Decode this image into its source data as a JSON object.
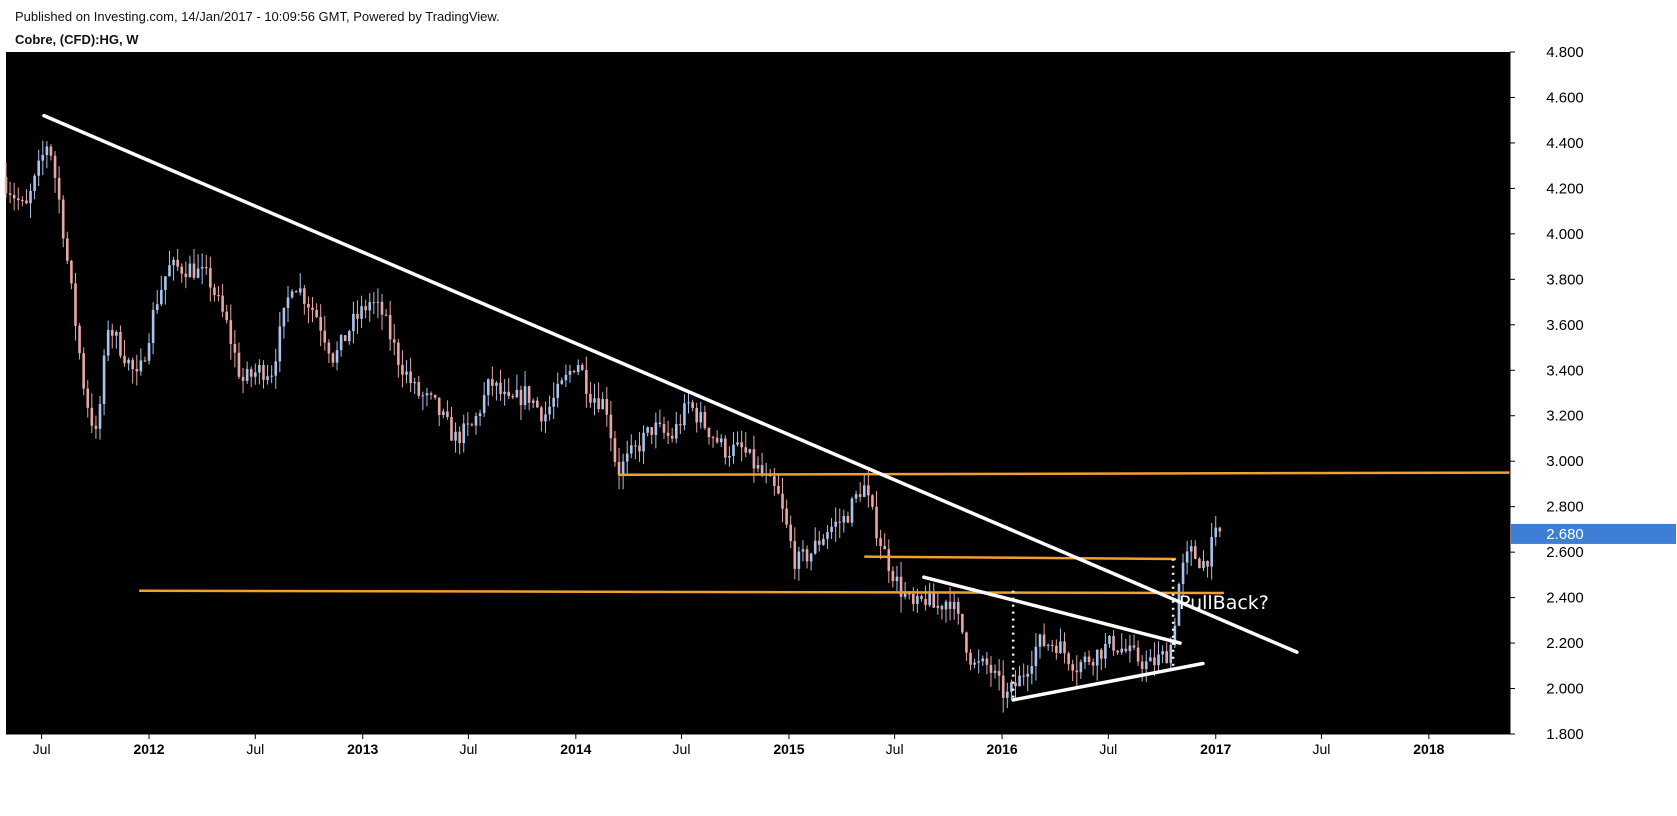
{
  "header": {
    "published": "Published on Investing.com, 14/Jan/2017 - 10:09:56 GMT, Powered by TradingView.",
    "symbol": "Cobre, (CFD):HG, W"
  },
  "chart_data": {
    "type": "candlestick",
    "title": "Cobre, (CFD):HG, W",
    "x_range": [
      "2011-05-01",
      "2018-05-20"
    ],
    "y_range": [
      1.8,
      4.8
    ],
    "y_ticks": [
      "4.800",
      "4.600",
      "4.400",
      "4.200",
      "4.000",
      "3.800",
      "3.600",
      "3.400",
      "3.200",
      "3.000",
      "2.800",
      "2.600",
      "2.400",
      "2.200",
      "2.000",
      "1.800"
    ],
    "x_ticks": [
      {
        "label": "Jul",
        "date": "2011-07-01",
        "bold": false
      },
      {
        "label": "2012",
        "date": "2012-01-01",
        "bold": true
      },
      {
        "label": "Jul",
        "date": "2012-07-01",
        "bold": false
      },
      {
        "label": "2013",
        "date": "2013-01-01",
        "bold": true
      },
      {
        "label": "Jul",
        "date": "2013-07-01",
        "bold": false
      },
      {
        "label": "2014",
        "date": "2014-01-01",
        "bold": true
      },
      {
        "label": "Jul",
        "date": "2014-07-01",
        "bold": false
      },
      {
        "label": "2015",
        "date": "2015-01-01",
        "bold": true
      },
      {
        "label": "Jul",
        "date": "2015-07-01",
        "bold": false
      },
      {
        "label": "2016",
        "date": "2016-01-01",
        "bold": true
      },
      {
        "label": "Jul",
        "date": "2016-07-01",
        "bold": false
      },
      {
        "label": "2017",
        "date": "2017-01-01",
        "bold": true
      },
      {
        "label": "Jul",
        "date": "2017-07-01",
        "bold": false
      },
      {
        "label": "2018",
        "date": "2018-01-01",
        "bold": true
      }
    ],
    "last_price": "2.680",
    "colors": {
      "background": "#000000",
      "up": "#a9c4ec",
      "down": "#e8a6a6",
      "trend": "#ffffff",
      "level": "#f0a030",
      "badge": "#3d7fd6"
    },
    "price_path": [
      [
        "2011-05-01",
        4.25
      ],
      [
        "2011-06-10",
        4.1
      ],
      [
        "2011-07-20",
        4.42
      ],
      [
        "2011-08-10",
        4.1
      ],
      [
        "2011-08-20",
        3.9
      ],
      [
        "2011-09-20",
        3.3
      ],
      [
        "2011-10-10",
        3.1
      ],
      [
        "2011-10-30",
        3.6
      ],
      [
        "2011-12-01",
        3.45
      ],
      [
        "2011-12-20",
        3.35
      ],
      [
        "2012-01-20",
        3.7
      ],
      [
        "2012-02-10",
        3.85
      ],
      [
        "2012-03-20",
        3.85
      ],
      [
        "2012-04-20",
        3.8
      ],
      [
        "2012-05-20",
        3.6
      ],
      [
        "2012-06-15",
        3.35
      ],
      [
        "2012-07-15",
        3.4
      ],
      [
        "2012-08-05",
        3.4
      ],
      [
        "2012-09-10",
        3.8
      ],
      [
        "2012-10-20",
        3.65
      ],
      [
        "2012-11-20",
        3.45
      ],
      [
        "2012-12-20",
        3.6
      ],
      [
        "2013-01-20",
        3.7
      ],
      [
        "2013-02-10",
        3.65
      ],
      [
        "2013-03-10",
        3.45
      ],
      [
        "2013-04-10",
        3.3
      ],
      [
        "2013-05-10",
        3.25
      ],
      [
        "2013-06-15",
        3.1
      ],
      [
        "2013-07-15",
        3.15
      ],
      [
        "2013-08-15",
        3.35
      ],
      [
        "2013-09-15",
        3.25
      ],
      [
        "2013-10-15",
        3.3
      ],
      [
        "2013-11-15",
        3.2
      ],
      [
        "2013-12-20",
        3.35
      ],
      [
        "2014-01-10",
        3.45
      ],
      [
        "2014-02-01",
        3.3
      ],
      [
        "2014-03-01",
        3.25
      ],
      [
        "2014-03-20",
        2.95
      ],
      [
        "2014-04-20",
        3.05
      ],
      [
        "2014-05-20",
        3.15
      ],
      [
        "2014-06-20",
        3.1
      ],
      [
        "2014-07-20",
        3.25
      ],
      [
        "2014-08-20",
        3.15
      ],
      [
        "2014-09-20",
        3.05
      ],
      [
        "2014-10-20",
        3.05
      ],
      [
        "2014-11-20",
        2.95
      ],
      [
        "2014-12-20",
        2.85
      ],
      [
        "2015-01-20",
        2.55
      ],
      [
        "2015-02-15",
        2.6
      ],
      [
        "2015-03-15",
        2.7
      ],
      [
        "2015-04-15",
        2.75
      ],
      [
        "2015-05-15",
        2.9
      ],
      [
        "2015-06-01",
        2.75
      ],
      [
        "2015-06-20",
        2.6
      ],
      [
        "2015-07-15",
        2.45
      ],
      [
        "2015-08-10",
        2.35
      ],
      [
        "2015-09-01",
        2.4
      ],
      [
        "2015-09-15",
        2.35
      ],
      [
        "2015-10-10",
        2.4
      ],
      [
        "2015-11-01",
        2.25
      ],
      [
        "2015-11-20",
        2.1
      ],
      [
        "2015-12-15",
        2.1
      ],
      [
        "2016-01-15",
        1.96
      ],
      [
        "2016-02-10",
        2.05
      ],
      [
        "2016-03-10",
        2.2
      ],
      [
        "2016-04-10",
        2.2
      ],
      [
        "2016-05-15",
        2.1
      ],
      [
        "2016-06-15",
        2.15
      ],
      [
        "2016-07-15",
        2.2
      ],
      [
        "2016-08-15",
        2.15
      ],
      [
        "2016-09-15",
        2.1
      ],
      [
        "2016-10-15",
        2.15
      ],
      [
        "2016-10-25",
        2.2
      ],
      [
        "2016-11-08",
        2.5
      ],
      [
        "2016-11-25",
        2.6
      ],
      [
        "2016-12-20",
        2.55
      ],
      [
        "2017-01-10",
        2.68
      ]
    ],
    "trendlines": [
      {
        "from": [
          "2011-07-05",
          4.52
        ],
        "to": [
          "2017-05-20",
          2.16
        ],
        "color": "trend"
      },
      {
        "from": [
          "2016-01-20",
          1.95
        ],
        "to": [
          "2016-12-10",
          2.11
        ],
        "color": "trend"
      },
      {
        "from": [
          "2015-08-20",
          2.49
        ],
        "to": [
          "2016-11-01",
          2.2
        ],
        "color": "trend"
      }
    ],
    "levels": [
      {
        "from": [
          "2014-03-15",
          2.94
        ],
        "to": [
          "2018-05-20",
          2.95
        ],
        "color": "level"
      },
      {
        "from": [
          "2011-12-15",
          2.43
        ],
        "to": [
          "2017-01-15",
          2.42
        ],
        "color": "level"
      },
      {
        "from": [
          "2015-05-10",
          2.58
        ],
        "to": [
          "2016-10-25",
          2.57
        ],
        "color": "level"
      }
    ],
    "dotted_lines": [
      {
        "date": "2016-01-20",
        "from": 1.96,
        "to": 2.43
      },
      {
        "date": "2016-10-20",
        "from": 2.1,
        "to": 2.57
      }
    ],
    "annotations": [
      {
        "text": "PullBack?",
        "date": "2016-10-30",
        "value": 2.35
      }
    ]
  }
}
